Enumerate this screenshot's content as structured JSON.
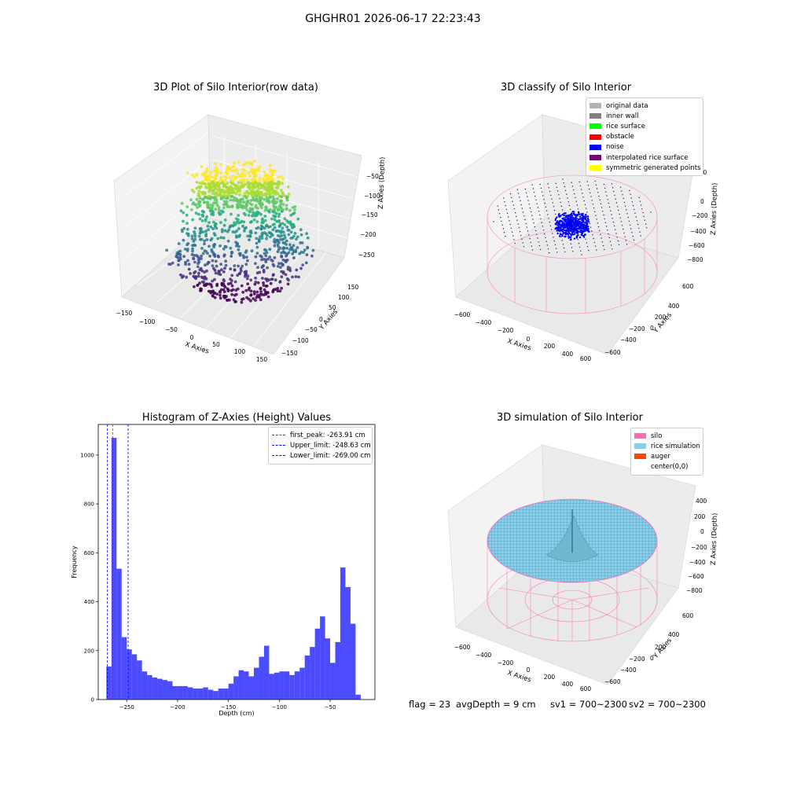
{
  "suptitle": "GHGHR01 2026-06-17 22:23:43",
  "panels": {
    "raw": {
      "title": "3D Plot of Silo Interior(row data)",
      "xlabel": "X Axies",
      "ylabel": "Y Axies",
      "zlabel": "Z Axies (Depth)",
      "xticks": [
        "−150",
        "−100",
        "−50",
        "0",
        "50",
        "100",
        "150"
      ],
      "yticks": [
        "150",
        "100",
        "50",
        "0",
        "−50",
        "−100",
        "−150"
      ],
      "zticks": [
        "−50",
        "−100",
        "−150",
        "−200",
        "−250"
      ],
      "colormap": "viridis"
    },
    "classify": {
      "title": "3D classify of Silo Interior",
      "xlabel": "X Axies",
      "ylabel": "Y Axies",
      "zlabel": "Z Axies (Depth)",
      "xticks": [
        "−600",
        "−400",
        "−200",
        "0",
        "200",
        "400",
        "600"
      ],
      "yticks": [
        "600",
        "400",
        "200",
        "0",
        "−200",
        "−400",
        "−600"
      ],
      "zticks": [
        "200",
        "0",
        "−200",
        "−400",
        "−600",
        "−800"
      ],
      "legend": [
        {
          "label": "original data",
          "color": "#b3b3b3"
        },
        {
          "label": "inner wall",
          "color": "#808080"
        },
        {
          "label": "rice surface",
          "color": "#00ff00"
        },
        {
          "label": "obstacle",
          "color": "#ff0000"
        },
        {
          "label": "noise",
          "color": "#0000ff"
        },
        {
          "label": "interpolated rice surface",
          "color": "#800080"
        },
        {
          "label": "symmetric generated points",
          "color": "#ffff00"
        }
      ]
    },
    "simulation": {
      "title": "3D simulation of Silo Interior",
      "xlabel": "X Axies",
      "ylabel": "Y Axies",
      "zlabel": "Z Axies (Depth)",
      "xticks": [
        "−600",
        "−400",
        "−200",
        "0",
        "200",
        "400",
        "600"
      ],
      "yticks": [
        "600",
        "400",
        "200",
        "0",
        "−200",
        "−400",
        "−600"
      ],
      "zticks": [
        "400",
        "200",
        "0",
        "−200",
        "−400",
        "−600",
        "−800"
      ],
      "legend": [
        {
          "label": "silo",
          "color": "#ff69b4"
        },
        {
          "label": "rice simulation",
          "color": "#87ceeb"
        },
        {
          "label": "auger",
          "color": "#ff4500"
        },
        {
          "label": "center(0,0)",
          "color": "#ffffff"
        }
      ]
    },
    "footer": {
      "flag": "flag = 23",
      "avg": "avgDepth = 9 cm",
      "sv1": "sv1 = 700~2300",
      "sv2": "sv2 = 700~2300"
    }
  },
  "chart_data": [
    {
      "type": "bar",
      "title": "Histogram of Z-Axies (Height) Values",
      "xlabel": "Depth (cm)",
      "ylabel": "Frequency",
      "xlim": [
        -278,
        -6
      ],
      "ylim": [
        0,
        1125
      ],
      "xticks": [
        -250,
        -200,
        -150,
        -100,
        -50
      ],
      "xtick_labels": [
        "−250",
        "−200",
        "−150",
        "−100",
        "−50"
      ],
      "yticks": [
        0,
        200,
        400,
        600,
        800,
        1000
      ],
      "bin_start": -270,
      "bin_width": 5,
      "color": "#0000ff",
      "values": [
        135,
        1070,
        535,
        255,
        205,
        185,
        160,
        115,
        100,
        90,
        85,
        80,
        75,
        55,
        55,
        55,
        50,
        45,
        45,
        50,
        40,
        35,
        45,
        45,
        65,
        95,
        120,
        115,
        95,
        130,
        175,
        220,
        105,
        110,
        115,
        115,
        100,
        115,
        130,
        180,
        215,
        290,
        340,
        250,
        150,
        235,
        540,
        460,
        310,
        20
      ],
      "lines": [
        {
          "label": "first_peak: -263.91 cm",
          "x": -263.91,
          "color": "#ff0000"
        },
        {
          "label": "Upper_limit: -248.63 cm",
          "x": -248.63,
          "color": "#0000ff"
        },
        {
          "label": "Lower_limit: -269.00 cm",
          "x": -269.0,
          "color": "#0000ff"
        }
      ],
      "legend_position": "upper right"
    }
  ]
}
